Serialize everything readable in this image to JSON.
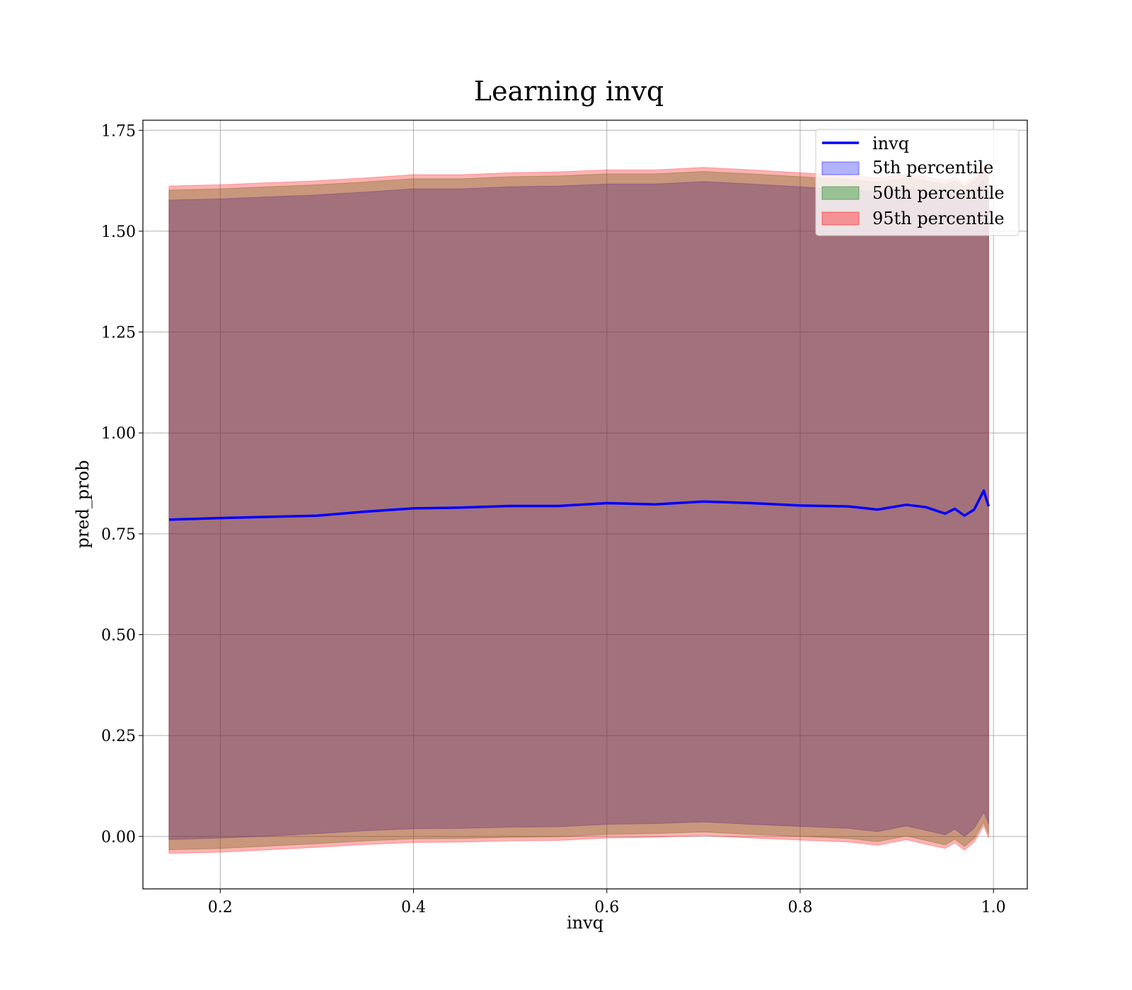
{
  "chart_data": {
    "type": "area",
    "title": "Learning invq",
    "xlabel": "invq",
    "ylabel": "pred_prob",
    "xlim": [
      0.12,
      1.035
    ],
    "ylim": [
      -0.13,
      1.775
    ],
    "xticks": [
      "0.2",
      "0.4",
      "0.6",
      "0.8",
      "1.0"
    ],
    "yticks": [
      "0.00",
      "0.25",
      "0.50",
      "0.75",
      "1.00",
      "1.25",
      "1.50",
      "1.75"
    ],
    "grid": true,
    "legend_position": "top-right",
    "x": [
      0.147,
      0.2,
      0.25,
      0.3,
      0.35,
      0.4,
      0.45,
      0.5,
      0.55,
      0.6,
      0.65,
      0.7,
      0.75,
      0.8,
      0.85,
      0.88,
      0.91,
      0.93,
      0.95,
      0.96,
      0.97,
      0.98,
      0.99,
      0.995
    ],
    "line_series": {
      "name": "invq",
      "color": "#0000ff",
      "values": [
        0.785,
        0.789,
        0.792,
        0.795,
        0.805,
        0.813,
        0.815,
        0.819,
        0.819,
        0.826,
        0.823,
        0.83,
        0.826,
        0.82,
        0.818,
        0.81,
        0.822,
        0.816,
        0.8,
        0.812,
        0.795,
        0.81,
        0.857,
        0.818
      ]
    },
    "bands": [
      {
        "name": "5th percentile",
        "color": "#0000ff",
        "lower": [
          -0.008,
          -0.004,
          0.001,
          0.007,
          0.014,
          0.019,
          0.02,
          0.023,
          0.024,
          0.03,
          0.032,
          0.036,
          0.03,
          0.025,
          0.02,
          0.012,
          0.026,
          0.015,
          0.004,
          0.018,
          0.0,
          0.02,
          0.06,
          0.03
        ],
        "upper": [
          1.577,
          1.58,
          1.585,
          1.59,
          1.597,
          1.605,
          1.605,
          1.61,
          1.612,
          1.617,
          1.617,
          1.623,
          1.617,
          1.61,
          1.603,
          1.597,
          1.606,
          1.6,
          1.59,
          1.6,
          1.585,
          1.6,
          1.625,
          1.605
        ]
      },
      {
        "name": "50th percentile",
        "color": "#008000",
        "lower": [
          -0.033,
          -0.03,
          -0.024,
          -0.018,
          -0.011,
          -0.006,
          -0.005,
          -0.002,
          -0.001,
          0.005,
          0.007,
          0.011,
          0.005,
          0.0,
          -0.005,
          -0.013,
          0.001,
          -0.01,
          -0.021,
          -0.007,
          -0.025,
          -0.005,
          0.035,
          0.005
        ],
        "upper": [
          1.602,
          1.605,
          1.61,
          1.615,
          1.622,
          1.63,
          1.63,
          1.635,
          1.637,
          1.642,
          1.642,
          1.648,
          1.642,
          1.635,
          1.628,
          1.622,
          1.631,
          1.625,
          1.615,
          1.625,
          1.61,
          1.625,
          1.65,
          1.63
        ]
      },
      {
        "name": "95th percentile",
        "color": "#ff0000",
        "lower": [
          -0.042,
          -0.039,
          -0.033,
          -0.027,
          -0.02,
          -0.015,
          -0.014,
          -0.011,
          -0.01,
          -0.004,
          -0.002,
          0.002,
          -0.004,
          -0.009,
          -0.014,
          -0.022,
          -0.008,
          -0.019,
          -0.03,
          -0.016,
          -0.034,
          -0.014,
          0.026,
          -0.004
        ],
        "upper": [
          1.612,
          1.615,
          1.62,
          1.625,
          1.632,
          1.64,
          1.64,
          1.645,
          1.647,
          1.652,
          1.652,
          1.658,
          1.652,
          1.645,
          1.638,
          1.632,
          1.641,
          1.635,
          1.625,
          1.635,
          1.62,
          1.635,
          1.66,
          1.64
        ]
      }
    ]
  }
}
